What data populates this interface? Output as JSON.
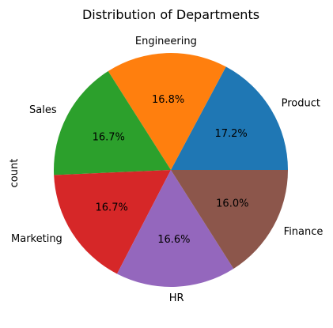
{
  "chart_data": {
    "type": "pie",
    "title": "Distribution of Departments",
    "ylabel": "count",
    "categories": [
      "Product",
      "Engineering",
      "Sales",
      "Marketing",
      "HR",
      "Finance"
    ],
    "values": [
      17.2,
      16.8,
      16.7,
      16.7,
      16.6,
      16.0
    ],
    "value_labels": [
      "17.2%",
      "16.8%",
      "16.7%",
      "16.7%",
      "16.6%",
      "16.0%"
    ],
    "colors": [
      "#1f77b4",
      "#ff7f0e",
      "#2ca02c",
      "#d62728",
      "#9467bd",
      "#8c564b"
    ],
    "start_angle_deg": 0,
    "direction": "counterclockwise",
    "legend": "none"
  }
}
